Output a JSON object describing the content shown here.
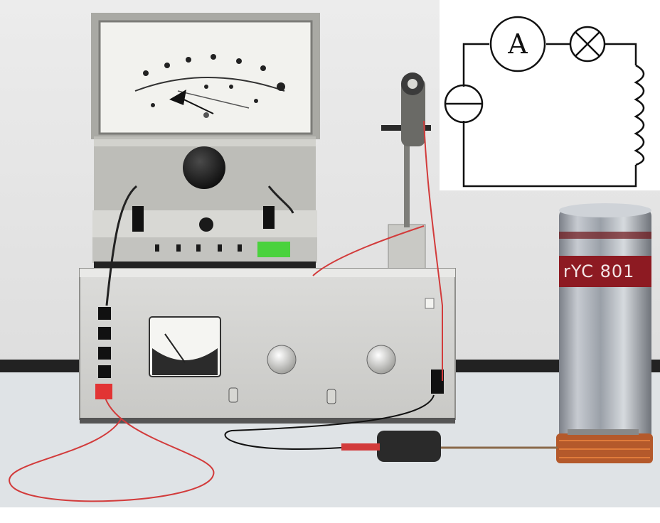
{
  "scene": {
    "description_objects": [
      "analog-meter",
      "power-supply",
      "probe-stand",
      "solenoid-can",
      "circuit-diagram"
    ]
  },
  "diagram": {
    "ammeter_symbol": "A"
  },
  "can": {
    "label_text": "rYC 801"
  },
  "colors": {
    "wall": "#e9e9e9",
    "table": "#dfe3e6",
    "meter_face": "#f3f3ef",
    "meter_case": "#bdbdb8",
    "supply_body": "#d8d8d6",
    "can_metal": "#b8bcc2",
    "can_band": "#8d1a22",
    "wire_red": "#d23b3b",
    "copper": "#b4592b"
  }
}
